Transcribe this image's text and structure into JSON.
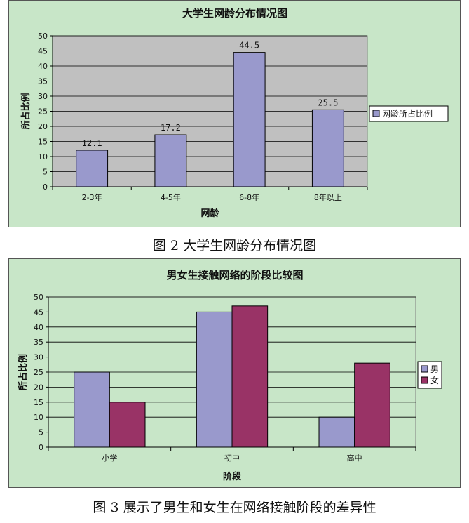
{
  "chart_data": [
    {
      "type": "bar",
      "title": "大学生网龄分布情况图",
      "xlabel": "网龄",
      "ylabel": "所占比例",
      "ylim": [
        0,
        50
      ],
      "yticks": [
        "0",
        "5",
        "10",
        "15",
        "20",
        "25",
        "30",
        "35",
        "40",
        "45",
        "50"
      ],
      "categories": [
        "2-3年",
        "4-5年",
        "6-8年",
        "8年以上"
      ],
      "series": [
        {
          "name": "网龄所占比例",
          "color": "#9999cc",
          "values": [
            12.1,
            17.2,
            44.5,
            25.5
          ],
          "labels": [
            "12.1",
            "17.2",
            "44.5",
            "25.5"
          ]
        }
      ],
      "legend": "right",
      "grid": true,
      "plot_background": "#c0c0c0"
    },
    {
      "type": "bar",
      "title": "男女生接触网络的阶段比较图",
      "xlabel": "阶段",
      "ylabel": "所占比例",
      "ylim": [
        0,
        50
      ],
      "yticks": [
        "0",
        "5",
        "10",
        "15",
        "20",
        "25",
        "30",
        "35",
        "40",
        "45",
        "50"
      ],
      "categories": [
        "小学",
        "初中",
        "高中"
      ],
      "series": [
        {
          "name": "男",
          "color": "#9999cc",
          "values": [
            25,
            45,
            10
          ]
        },
        {
          "name": "女",
          "color": "#993366",
          "values": [
            15,
            47,
            28
          ]
        }
      ],
      "legend": "right",
      "grid": true,
      "plot_background": "#c8e6c8"
    }
  ],
  "captions": {
    "fig2": "图 2 大学生网龄分布情况图",
    "fig3": "图 3 展示了男生和女生在网络接触阶段的差异性"
  }
}
